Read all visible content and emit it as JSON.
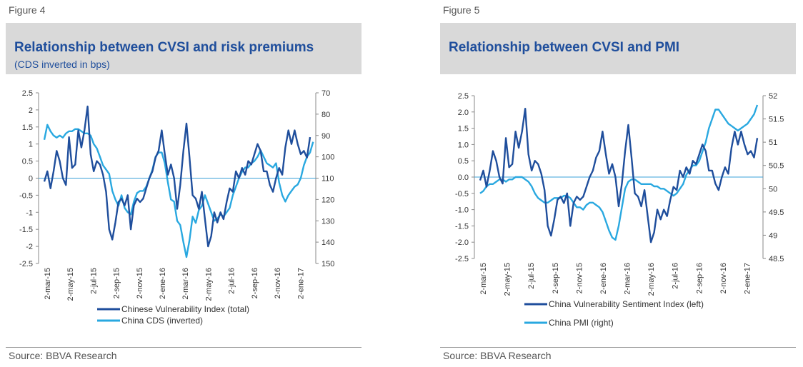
{
  "figures": [
    {
      "figure_label": "Figure 4",
      "title": "Relationship between CVSI and risk premiums",
      "subtitle": "(CDS inverted in bps)",
      "source": "Source: BBVA Research"
    },
    {
      "figure_label": "Figure 5",
      "title": "Relationship between CVSI and PMI",
      "subtitle": "",
      "source": "Source: BBVA Research"
    }
  ],
  "colors": {
    "dark_series": "#1f4e9c",
    "light_series": "#29a8e0",
    "zero_line": "#3aa0d8",
    "axis": "#888888"
  },
  "chart_data": [
    {
      "type": "line",
      "x_tick_labels": [
        "2-mar-15",
        "2-may-15",
        "2-jul-15",
        "2-sep-15",
        "2-nov-15",
        "2-ene-16",
        "2-mar-16",
        "2-may-16",
        "2-jul-16",
        "2-sep-16",
        "2-nov-16",
        "2-ene-17"
      ],
      "left_axis": {
        "ylim": [
          -2.5,
          2.5
        ],
        "ticks": [
          "2.5",
          "2",
          "1.5",
          "1",
          "0.5",
          "0",
          "-0.5",
          "-1",
          "-1.5",
          "-2",
          "-2.5"
        ]
      },
      "right_axis": {
        "ylim": [
          70,
          150
        ],
        "inverted": true,
        "ticks": [
          "70",
          "80",
          "90",
          "100",
          "110",
          "120",
          "130",
          "140",
          "150"
        ]
      },
      "series": [
        {
          "name": "Chinese Vulnerability Index (total)",
          "axis": "left",
          "color": "#1f4e9c",
          "values": [
            -0.1,
            0.2,
            -0.3,
            0.2,
            0.8,
            0.5,
            0.0,
            -0.2,
            1.2,
            0.3,
            0.4,
            1.4,
            0.9,
            1.4,
            2.1,
            0.7,
            0.2,
            0.5,
            0.4,
            0.1,
            -0.4,
            -1.5,
            -1.8,
            -1.3,
            -0.7,
            -0.6,
            -0.8,
            -0.5,
            -1.5,
            -0.8,
            -0.6,
            -0.7,
            -0.6,
            -0.3,
            0.0,
            0.2,
            0.6,
            0.8,
            1.4,
            0.7,
            0.1,
            0.4,
            0.0,
            -0.9,
            -0.2,
            0.8,
            1.6,
            0.6,
            -0.5,
            -0.6,
            -0.9,
            -0.4,
            -1.2,
            -2.0,
            -1.7,
            -1.0,
            -1.3,
            -1.0,
            -1.2,
            -0.7,
            -0.3,
            -0.4,
            0.2,
            0.0,
            0.3,
            0.1,
            0.5,
            0.4,
            0.7,
            1.0,
            0.8,
            0.2,
            0.2,
            -0.2,
            -0.4,
            0.0,
            0.3,
            0.1,
            0.9,
            1.4,
            1.0,
            1.4,
            1.0,
            0.7,
            0.8,
            0.6,
            1.2
          ]
        },
        {
          "name": "China CDS (inverted)",
          "axis": "right",
          "color": "#29a8e0",
          "values": [
            92,
            85,
            88,
            90,
            91,
            90,
            91,
            89,
            88,
            88,
            87,
            87,
            88,
            89,
            89,
            90,
            94,
            96,
            100,
            104,
            106,
            108,
            116,
            120,
            123,
            118,
            124,
            126,
            127,
            121,
            117,
            116,
            116,
            114,
            110,
            106,
            100,
            98,
            98,
            103,
            112,
            120,
            121,
            130,
            132,
            140,
            147,
            139,
            128,
            131,
            125,
            123,
            118,
            122,
            126,
            130,
            129,
            127,
            128,
            126,
            124,
            118,
            114,
            110,
            107,
            105,
            105,
            103,
            102,
            100,
            97,
            100,
            103,
            104,
            105,
            103,
            112,
            118,
            121,
            118,
            116,
            114,
            113,
            110,
            104,
            100,
            98,
            93
          ]
        }
      ]
    },
    {
      "type": "line",
      "x_tick_labels": [
        "2-mar-15",
        "2-may-15",
        "2-jul-15",
        "2-sep-15",
        "2-nov-15",
        "2-ene-16",
        "2-mar-16",
        "2-may-16",
        "2-jul-16",
        "2-sep-16",
        "2-nov-16",
        "2-ene-17"
      ],
      "left_axis": {
        "ylim": [
          -2.5,
          2.5
        ],
        "ticks": [
          "2.5",
          "2.0",
          "1.5",
          "1.0",
          "0.5",
          "0.0",
          "-0.5",
          "-1.0",
          "-1.5",
          "-2.0",
          "-2.5"
        ]
      },
      "right_axis": {
        "ylim": [
          48.5,
          52
        ],
        "inverted": false,
        "ticks": [
          "52",
          "51.5",
          "51",
          "50.5",
          "50",
          "49.5",
          "49",
          "48.5"
        ]
      },
      "series": [
        {
          "name": "China Vulnerability Sentiment Index  (left)",
          "axis": "left",
          "color": "#1f4e9c",
          "values": [
            -0.1,
            0.2,
            -0.3,
            0.2,
            0.8,
            0.5,
            0.0,
            -0.2,
            1.2,
            0.3,
            0.4,
            1.4,
            0.9,
            1.4,
            2.1,
            0.7,
            0.2,
            0.5,
            0.4,
            0.1,
            -0.4,
            -1.5,
            -1.8,
            -1.3,
            -0.7,
            -0.6,
            -0.8,
            -0.5,
            -1.5,
            -0.8,
            -0.6,
            -0.7,
            -0.6,
            -0.3,
            0.0,
            0.2,
            0.6,
            0.8,
            1.4,
            0.7,
            0.1,
            0.4,
            0.0,
            -0.9,
            -0.2,
            0.8,
            1.6,
            0.6,
            -0.5,
            -0.6,
            -0.9,
            -0.4,
            -1.2,
            -2.0,
            -1.7,
            -1.0,
            -1.3,
            -1.0,
            -1.2,
            -0.7,
            -0.3,
            -0.4,
            0.2,
            0.0,
            0.3,
            0.1,
            0.5,
            0.4,
            0.7,
            1.0,
            0.8,
            0.2,
            0.2,
            -0.2,
            -0.4,
            0.0,
            0.3,
            0.1,
            0.9,
            1.4,
            1.0,
            1.4,
            1.0,
            0.7,
            0.8,
            0.6,
            1.2
          ]
        },
        {
          "name": "China PMI (right)",
          "axis": "right",
          "color": "#29a8e0",
          "values": [
            49.9,
            49.95,
            50.05,
            50.1,
            50.1,
            50.15,
            50.2,
            50.2,
            50.15,
            50.2,
            50.2,
            50.25,
            50.25,
            50.25,
            50.2,
            50.15,
            50.05,
            49.9,
            49.8,
            49.75,
            49.7,
            49.7,
            49.75,
            49.8,
            49.8,
            49.8,
            49.85,
            49.85,
            49.8,
            49.7,
            49.6,
            49.6,
            49.55,
            49.65,
            49.7,
            49.7,
            49.65,
            49.6,
            49.5,
            49.3,
            49.1,
            48.95,
            48.9,
            49.2,
            49.6,
            50.0,
            50.15,
            50.2,
            50.2,
            50.15,
            50.1,
            50.1,
            50.1,
            50.1,
            50.05,
            50.05,
            50.0,
            50.0,
            49.95,
            49.9,
            49.85,
            49.9,
            50.0,
            50.1,
            50.3,
            50.4,
            50.5,
            50.5,
            50.6,
            50.8,
            51.0,
            51.3,
            51.5,
            51.7,
            51.7,
            51.6,
            51.5,
            51.4,
            51.35,
            51.3,
            51.25,
            51.3,
            51.35,
            51.4,
            51.5,
            51.6,
            51.8
          ]
        }
      ]
    }
  ]
}
